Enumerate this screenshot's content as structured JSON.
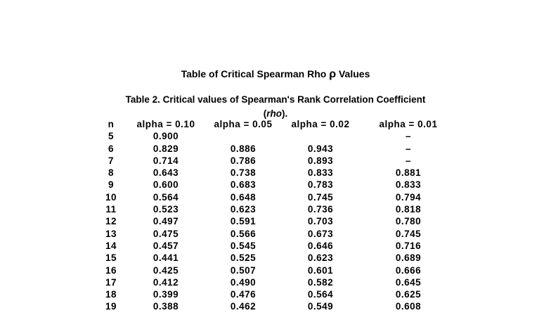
{
  "page": {
    "title": {
      "prefix": "Table of Critical Spearman Rho ",
      "rho_symbol": "ρ",
      "suffix": " Values"
    }
  },
  "caption": {
    "line1": "Table 2. Critical values of Spearman's Rank Correlation Coefficient",
    "line2_open_paren": "(",
    "line2_italic_word": "rho",
    "line2_close": ")."
  },
  "table": {
    "columns": [
      "n",
      "alpha = 0.10",
      "alpha = 0.05",
      "alpha = 0.02",
      "alpha = 0.01"
    ],
    "missing_marker": "–",
    "rows": [
      [
        "5",
        "0.900",
        "",
        "",
        "–"
      ],
      [
        "6",
        "0.829",
        "0.886",
        "0.943",
        "–"
      ],
      [
        "7",
        "0.714",
        "0.786",
        "0.893",
        "–"
      ],
      [
        "8",
        "0.643",
        "0.738",
        "0.833",
        "0.881"
      ],
      [
        "9",
        "0.600",
        "0.683",
        "0.783",
        "0.833"
      ],
      [
        "10",
        "0.564",
        "0.648",
        "0.745",
        "0.794"
      ],
      [
        "11",
        "0.523",
        "0.623",
        "0.736",
        "0.818"
      ],
      [
        "12",
        "0.497",
        "0.591",
        "0.703",
        "0.780"
      ],
      [
        "13",
        "0.475",
        "0.566",
        "0.673",
        "0.745"
      ],
      [
        "14",
        "0.457",
        "0.545",
        "0.646",
        "0.716"
      ],
      [
        "15",
        "0.441",
        "0.525",
        "0.623",
        "0.689"
      ],
      [
        "16",
        "0.425",
        "0.507",
        "0.601",
        "0.666"
      ],
      [
        "17",
        "0.412",
        "0.490",
        "0.582",
        "0.645"
      ],
      [
        "18",
        "0.399",
        "0.476",
        "0.564",
        "0.625"
      ],
      [
        "19",
        "0.388",
        "0.462",
        "0.549",
        "0.608"
      ]
    ]
  },
  "colors": {
    "background": "#ffffff",
    "text": "#000000"
  }
}
